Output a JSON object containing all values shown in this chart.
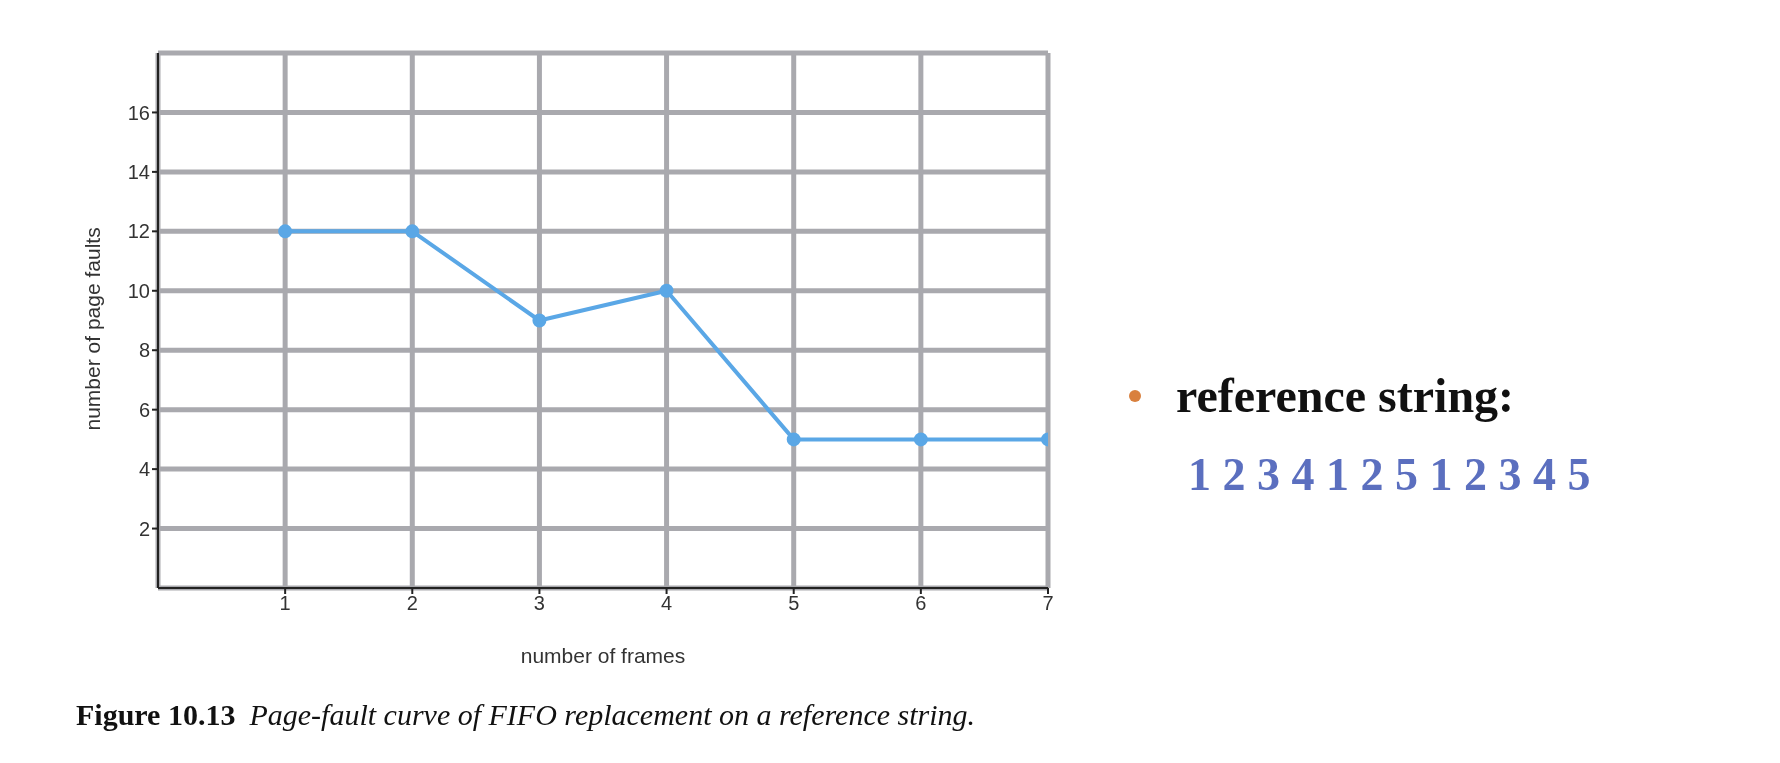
{
  "chart_data": {
    "type": "line",
    "xlabel": "number of frames",
    "ylabel": "number of page faults",
    "x": [
      1,
      2,
      3,
      4,
      5,
      6,
      7
    ],
    "series": [
      {
        "color": "#5aa7e6",
        "values": [
          12,
          12,
          9,
          10,
          5,
          5,
          5
        ]
      }
    ],
    "xlim": [
      0,
      7
    ],
    "xticks": [
      1,
      2,
      3,
      4,
      5,
      6,
      7
    ],
    "ylim": [
      0,
      18
    ],
    "yticks": [
      2,
      4,
      6,
      8,
      10,
      12,
      14,
      16
    ],
    "grid": true,
    "marker": "circle",
    "line_style": "solid",
    "legend": false,
    "annotations": [
      "reference string:",
      "1 2 3 4 1 2 5 1 2 3 4 5",
      "Figure 10.13",
      "Page-fault curve of FIFO replacement on a reference string."
    ]
  }
}
